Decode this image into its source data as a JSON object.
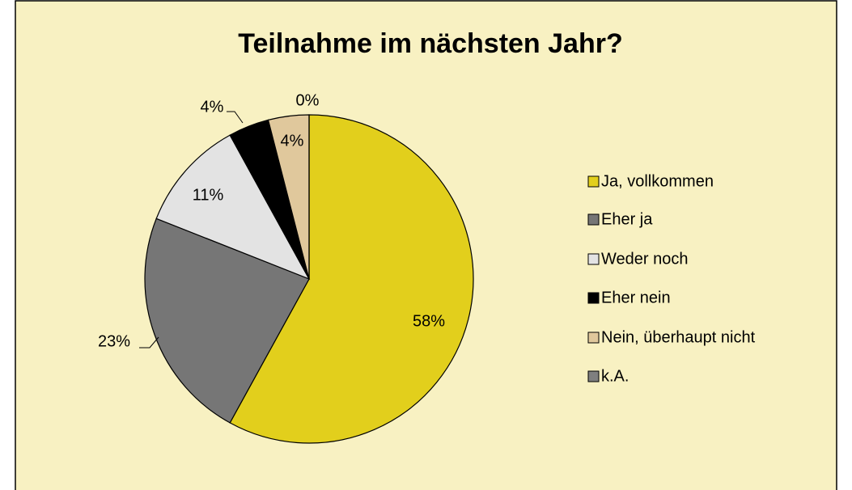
{
  "chart_data": {
    "type": "pie",
    "title": "Teilnahme im nächsten Jahr?",
    "categories": [
      "Ja, vollkommen",
      "Eher ja",
      "Weder noch",
      "Eher nein",
      "Nein, überhaupt nicht",
      "k.A."
    ],
    "values": [
      58,
      23,
      11,
      4,
      4,
      0
    ],
    "value_labels": [
      "58%",
      "23%",
      "11%",
      "4%",
      "4%",
      "0%"
    ],
    "colors": [
      "#e2cf1c",
      "#767676",
      "#e3e3e3",
      "#000000",
      "#e0c89c",
      "#7f7f7f"
    ],
    "legend": "right"
  }
}
